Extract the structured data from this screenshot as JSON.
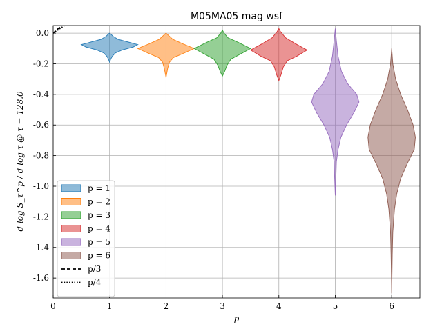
{
  "chart_data": {
    "type": "violin",
    "title": "M05MA05 mag wsf",
    "xlabel": "p",
    "ylabel": "d log S_τ^p / d log τ @ τ = 128.0",
    "xlim": [
      0,
      6.5
    ],
    "ylim": [
      -1.73,
      0.05
    ],
    "xticks": [
      0,
      1,
      2,
      3,
      4,
      5,
      6
    ],
    "yticks": [
      0.0,
      -0.2,
      -0.4,
      -0.6,
      -0.8,
      -1.0,
      -1.2,
      -1.4,
      -1.6
    ],
    "ytick_labels": [
      "0.0",
      "-0.2",
      "-0.4",
      "-0.6",
      "-0.8",
      "-1.0",
      "-1.2",
      "-1.4",
      "-1.6"
    ],
    "grid": true,
    "legend_position": "lower-left",
    "series": [
      {
        "name": "p = 1",
        "x": 1,
        "color": "#1f77b4",
        "profile": [
          [
            0.0,
            0.0
          ],
          [
            -0.005,
            0.02
          ],
          [
            -0.02,
            0.06
          ],
          [
            -0.04,
            0.15
          ],
          [
            -0.06,
            0.35
          ],
          [
            -0.075,
            0.5
          ],
          [
            -0.09,
            0.42
          ],
          [
            -0.11,
            0.22
          ],
          [
            -0.13,
            0.1
          ],
          [
            -0.15,
            0.05
          ],
          [
            -0.17,
            0.02
          ],
          [
            -0.19,
            0.0
          ]
        ]
      },
      {
        "name": "p = 2",
        "x": 2,
        "color": "#ff7f0e",
        "profile": [
          [
            0.0,
            0.0
          ],
          [
            -0.01,
            0.03
          ],
          [
            -0.04,
            0.12
          ],
          [
            -0.07,
            0.3
          ],
          [
            -0.1,
            0.5
          ],
          [
            -0.13,
            0.32
          ],
          [
            -0.16,
            0.13
          ],
          [
            -0.19,
            0.06
          ],
          [
            -0.23,
            0.03
          ],
          [
            -0.27,
            0.01
          ],
          [
            -0.29,
            0.0
          ]
        ]
      },
      {
        "name": "p = 3",
        "x": 3,
        "color": "#2ca02c",
        "profile": [
          [
            0.02,
            0.0
          ],
          [
            0.0,
            0.03
          ],
          [
            -0.03,
            0.1
          ],
          [
            -0.06,
            0.28
          ],
          [
            -0.1,
            0.5
          ],
          [
            -0.14,
            0.3
          ],
          [
            -0.17,
            0.15
          ],
          [
            -0.21,
            0.08
          ],
          [
            -0.25,
            0.04
          ],
          [
            -0.28,
            0.0
          ]
        ]
      },
      {
        "name": "p = 4",
        "x": 4,
        "color": "#d62728",
        "profile": [
          [
            0.03,
            0.0
          ],
          [
            0.01,
            0.03
          ],
          [
            -0.03,
            0.12
          ],
          [
            -0.07,
            0.3
          ],
          [
            -0.11,
            0.5
          ],
          [
            -0.15,
            0.32
          ],
          [
            -0.18,
            0.15
          ],
          [
            -0.22,
            0.08
          ],
          [
            -0.27,
            0.04
          ],
          [
            -0.31,
            0.0
          ]
        ]
      },
      {
        "name": "p = 5",
        "x": 5,
        "color": "#9467bd",
        "profile": [
          [
            0.03,
            0.0
          ],
          [
            -0.05,
            0.02
          ],
          [
            -0.15,
            0.05
          ],
          [
            -0.25,
            0.11
          ],
          [
            -0.33,
            0.22
          ],
          [
            -0.4,
            0.38
          ],
          [
            -0.45,
            0.42
          ],
          [
            -0.52,
            0.33
          ],
          [
            -0.6,
            0.2
          ],
          [
            -0.68,
            0.1
          ],
          [
            -0.76,
            0.05
          ],
          [
            -0.84,
            0.02
          ],
          [
            -0.95,
            0.01
          ],
          [
            -1.06,
            0.0
          ]
        ]
      },
      {
        "name": "p = 6",
        "x": 6,
        "color": "#8c564b",
        "profile": [
          [
            -0.1,
            0.0
          ],
          [
            -0.2,
            0.02
          ],
          [
            -0.3,
            0.07
          ],
          [
            -0.4,
            0.16
          ],
          [
            -0.5,
            0.28
          ],
          [
            -0.6,
            0.38
          ],
          [
            -0.68,
            0.42
          ],
          [
            -0.76,
            0.4
          ],
          [
            -0.85,
            0.28
          ],
          [
            -0.95,
            0.16
          ],
          [
            -1.05,
            0.09
          ],
          [
            -1.15,
            0.05
          ],
          [
            -1.3,
            0.02
          ],
          [
            -1.45,
            0.01
          ],
          [
            -1.7,
            0.0
          ]
        ]
      }
    ],
    "reference_lines": [
      {
        "name": "p/3",
        "style": "dashed",
        "slope": 0.3333
      },
      {
        "name": "p/4",
        "style": "dotted",
        "slope": 0.25
      }
    ]
  }
}
